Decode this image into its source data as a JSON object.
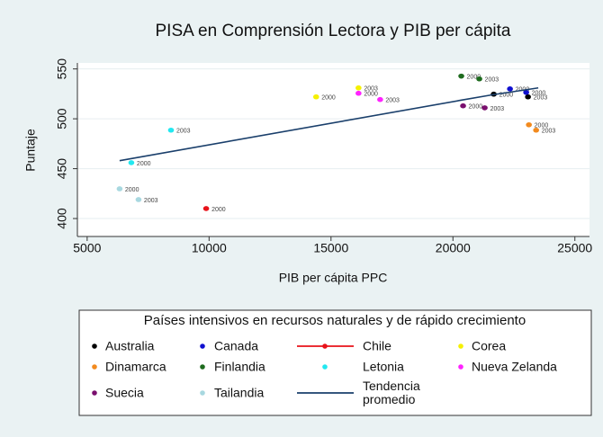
{
  "chart_data": {
    "type": "scatter",
    "title": "PISA en Comprensión Lectora y PIB per cápita",
    "x_label": "PIB per cápita PPC",
    "y_label": "Puntaje",
    "xlim": [
      4600,
      25600
    ],
    "xticks": [
      5000,
      10000,
      15000,
      20000,
      25000
    ],
    "ylim": [
      382,
      556
    ],
    "yticks": [
      400,
      450,
      500,
      550
    ],
    "grid": true,
    "legend_title": "Países intensivos en recursos naturales y de rápido crecimiento",
    "series": [
      {
        "name": "Australia",
        "color": "#000000",
        "x": [
          21673,
          23078
        ],
        "values": [
          524.7,
          522
        ],
        "labels": [
          "2000",
          "2003"
        ]
      },
      {
        "name": "Canada",
        "color": "#1010d0",
        "x": [
          22339,
          23004
        ],
        "values": [
          530,
          526.5
        ],
        "labels": [
          "2000",
          "2000"
        ]
      },
      {
        "name": "Chile",
        "color": "#e8121a",
        "x": [
          9880
        ],
        "values": [
          410
        ],
        "labels": [
          "2000"
        ],
        "legend_symbol": "line-dot"
      },
      {
        "name": "Corea",
        "color": "#f5f000",
        "x": [
          14390,
          16128
        ],
        "values": [
          522,
          531
        ],
        "labels": [
          "2000",
          "2003"
        ]
      },
      {
        "name": "Dinamarca",
        "color": "#f28a1e",
        "x": [
          23115,
          23411
        ],
        "values": [
          494,
          488.6
        ],
        "labels": [
          "2000",
          "2003"
        ]
      },
      {
        "name": "Finlandia",
        "color": "#1e6b1e",
        "x": [
          20342,
          21081
        ],
        "values": [
          542.8,
          540
        ],
        "labels": [
          "2000",
          "2003"
        ]
      },
      {
        "name": "Letonia",
        "color": "#22e8f0",
        "x": [
          6812,
          8438
        ],
        "values": [
          456,
          488.6
        ],
        "labels": [
          "2000",
          "2003"
        ]
      },
      {
        "name": "Nueva Zelanda",
        "color": "#ff22ff",
        "x": [
          16128,
          17015
        ],
        "values": [
          525.6,
          519.3
        ],
        "labels": [
          "2000",
          "2003"
        ]
      },
      {
        "name": "Suecia",
        "color": "#7a0f6e",
        "x": [
          20416,
          21303
        ],
        "values": [
          513,
          511
        ],
        "labels": [
          "2000",
          "2003"
        ]
      },
      {
        "name": "Tailandia",
        "color": "#a8d8e0",
        "x": [
          6331,
          7107
        ],
        "values": [
          429.8,
          419
        ],
        "labels": [
          "2000",
          "2003"
        ]
      },
      {
        "name": "Tendencia promedio",
        "color": "#1a3f6b",
        "x": [
          6331,
          20300,
          21600,
          23500
        ],
        "values": [
          458,
          518.5,
          524,
          531
        ],
        "legend_symbol": "line"
      }
    ]
  }
}
